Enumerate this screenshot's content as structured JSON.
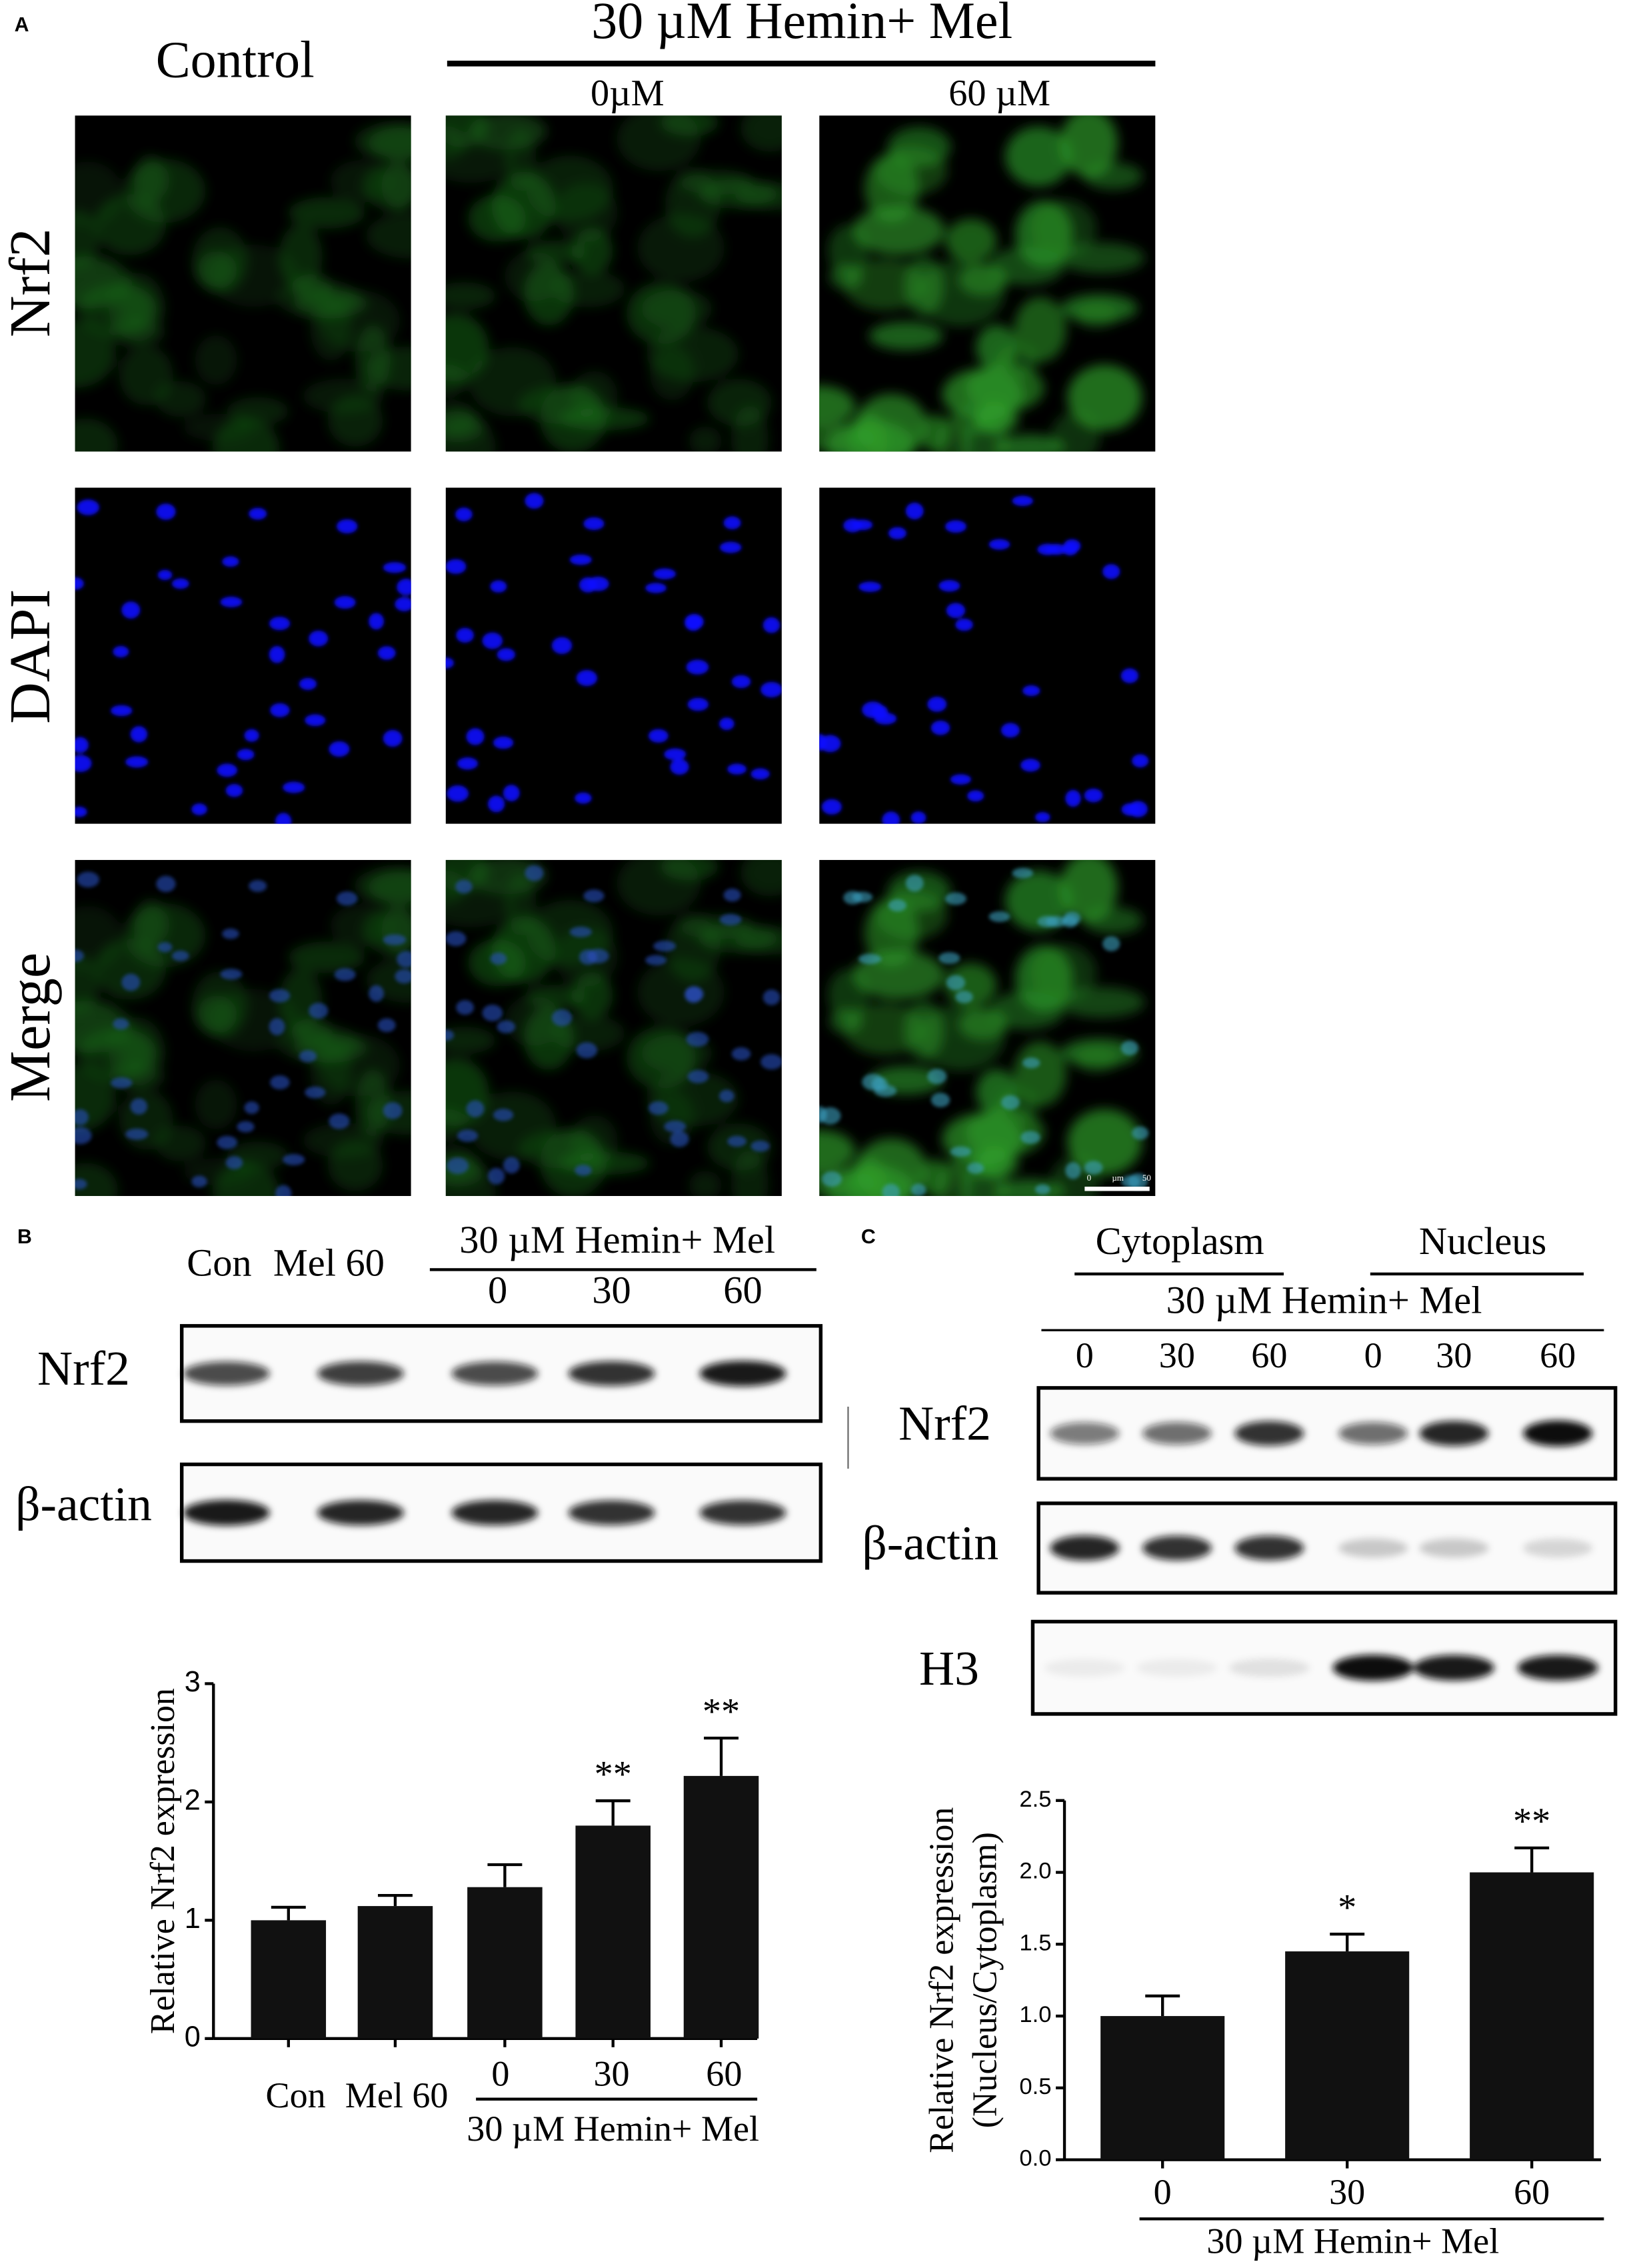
{
  "panel_a": {
    "label": "A",
    "control": "Control",
    "treatment": "30 µM Hemin+ Mel",
    "doses": [
      "0µM",
      "60 µM"
    ],
    "rows": [
      "Nrf2",
      "DAPI",
      "Merge"
    ],
    "scale_bar": [
      "0",
      "µm",
      "50"
    ]
  },
  "panel_b": {
    "label": "B",
    "lanes": [
      "Con",
      "Mel 60",
      "0",
      "30",
      "60"
    ],
    "treatment": "30 µM Hemin+ Mel",
    "rows": [
      "Nrf2",
      "β-actin"
    ]
  },
  "panel_c": {
    "label": "C",
    "fractions": [
      "Cytoplasm",
      "Nucleus"
    ],
    "treatment": "30 µM Hemin+ Mel",
    "lanes": [
      "0",
      "30",
      "60",
      "0",
      "30",
      "60"
    ],
    "rows": [
      "Nrf2",
      "β-actin",
      "H3"
    ]
  },
  "chart_data": [
    {
      "type": "bar",
      "categories": [
        "Con",
        "Mel 60",
        "0",
        "30",
        "60"
      ],
      "values": [
        1.0,
        1.12,
        1.28,
        1.8,
        2.22
      ],
      "errors": [
        0.11,
        0.09,
        0.19,
        0.21,
        0.32
      ],
      "annotations": [
        null,
        null,
        null,
        "**",
        "**"
      ],
      "color": "#111111",
      "ylabel": [
        "Relative Nrf2 expression"
      ],
      "xlabel": "30 µM Hemin+ Mel",
      "ylim": [
        0,
        3
      ],
      "yticks": [
        0,
        1,
        2,
        3
      ]
    },
    {
      "type": "bar",
      "categories": [
        "0",
        "30",
        "60"
      ],
      "values": [
        1.0,
        1.45,
        2.0
      ],
      "errors": [
        0.14,
        0.12,
        0.17
      ],
      "annotations": [
        null,
        "*",
        "**"
      ],
      "color": "#111111",
      "ylabel": [
        "Relative Nrf2 expression",
        "(Nucleus/Cytoplasm)"
      ],
      "xlabel": "30 µM Hemin+ Mel",
      "ylim": [
        0,
        2.5
      ],
      "yticks": [
        {
          "value": 0,
          "label": "0.0"
        },
        {
          "value": 0.5,
          "label": "0.5"
        },
        {
          "value": 1,
          "label": "1.0"
        },
        {
          "value": 1.5,
          "label": "1.5"
        },
        {
          "value": 2,
          "label": "2.0"
        },
        {
          "value": 2.5,
          "label": "2.5"
        }
      ]
    }
  ]
}
